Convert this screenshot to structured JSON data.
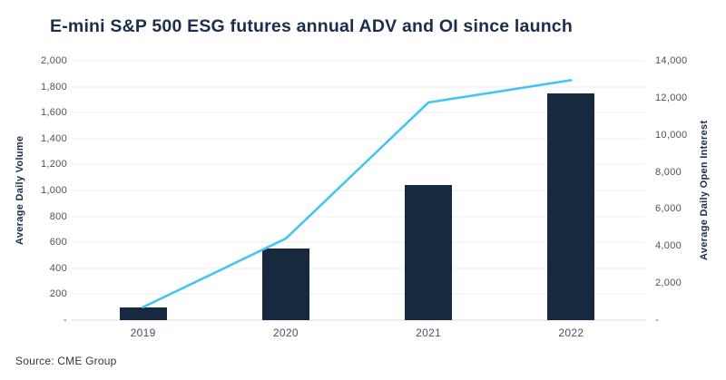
{
  "title": "E-mini S&P 500 ESG futures annual ADV and OI since launch",
  "source": "Source: CME Group",
  "colors": {
    "title": "#1B2E4D",
    "bar": "#16293F",
    "line": "#45C4F1",
    "gridline": "#ECEDEF",
    "baseline": "#D6D8DB",
    "tick_text": "#4A5260"
  },
  "chart_data": {
    "type": "bar",
    "subtype": "combo-bar-line-dual-axis",
    "categories": [
      "2019",
      "2020",
      "2021",
      "2022"
    ],
    "series": [
      {
        "name": "Average Daily Volume",
        "type": "bar",
        "axis": "left",
        "color": "#16293F",
        "values": [
          100,
          550,
          1040,
          1745
        ]
      },
      {
        "name": "Average Daily Open Interest",
        "type": "line",
        "axis": "right",
        "color": "#45C4F1",
        "values": [
          700,
          4400,
          11750,
          12950
        ]
      }
    ],
    "left_axis": {
      "label": "Average Daily Volume",
      "min": 0,
      "max": 2000,
      "step": 200,
      "tick_labels": [
        "2,000",
        "1,800",
        "1,600",
        "1,400",
        "1,200",
        "1,000",
        "800",
        "600",
        "400",
        "200",
        "-"
      ]
    },
    "right_axis": {
      "label": "Average Daily Open Interest",
      "min": 0,
      "max": 14000,
      "step": 2000,
      "tick_labels": [
        "14,000",
        "12,000",
        "10,000",
        "8,000",
        "6,000",
        "4,000",
        "2,000",
        "-"
      ]
    },
    "grid": true,
    "legend": "none"
  }
}
